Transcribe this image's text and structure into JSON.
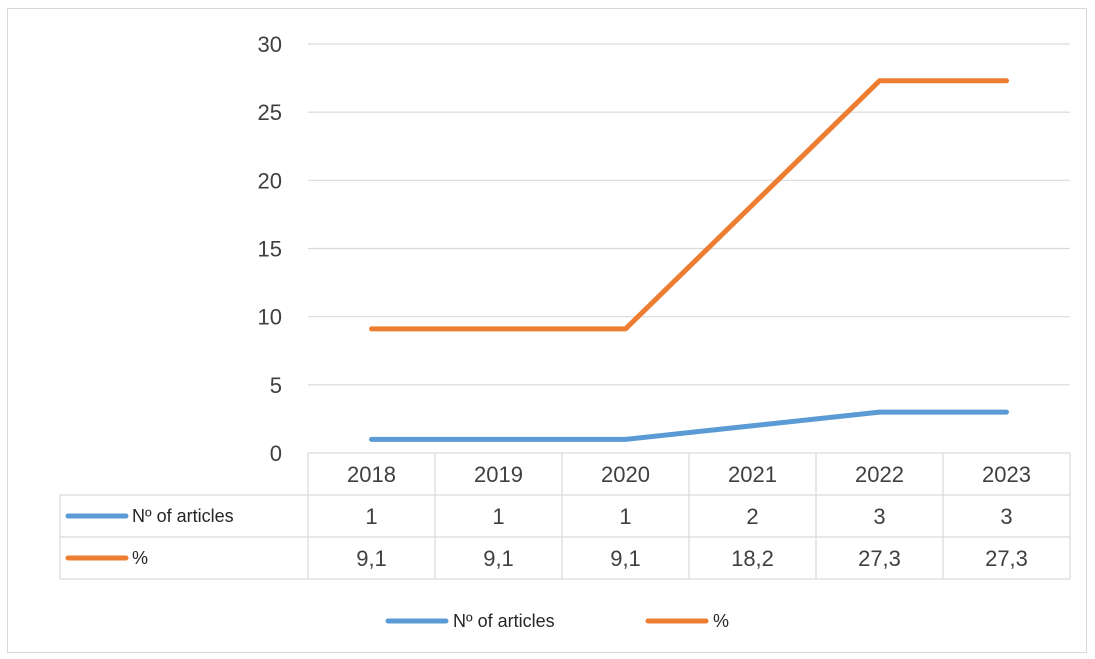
{
  "chart_data": {
    "type": "line",
    "title": "",
    "xlabel": "",
    "ylabel": "",
    "ylim": [
      0,
      30
    ],
    "yticks": [
      "0",
      "5",
      "10",
      "15",
      "20",
      "25",
      "30"
    ],
    "categories": [
      "2018",
      "2019",
      "2020",
      "2021",
      "2022",
      "2023"
    ],
    "grid": true,
    "legend_position": "bottom",
    "data_table": true,
    "series": [
      {
        "name": "Nº  of articles",
        "color": "#5b9bd5",
        "values": [
          1,
          1,
          1,
          2,
          3,
          3
        ],
        "table_values": [
          "1",
          "1",
          "1",
          "2",
          "3",
          "3"
        ]
      },
      {
        "name": "%",
        "color": "#ed7d31",
        "values": [
          9.1,
          9.1,
          9.1,
          18.2,
          27.3,
          27.3
        ],
        "table_values": [
          "9,1",
          "9,1",
          "9,1",
          "18,2",
          "27,3",
          "27,3"
        ]
      }
    ]
  }
}
